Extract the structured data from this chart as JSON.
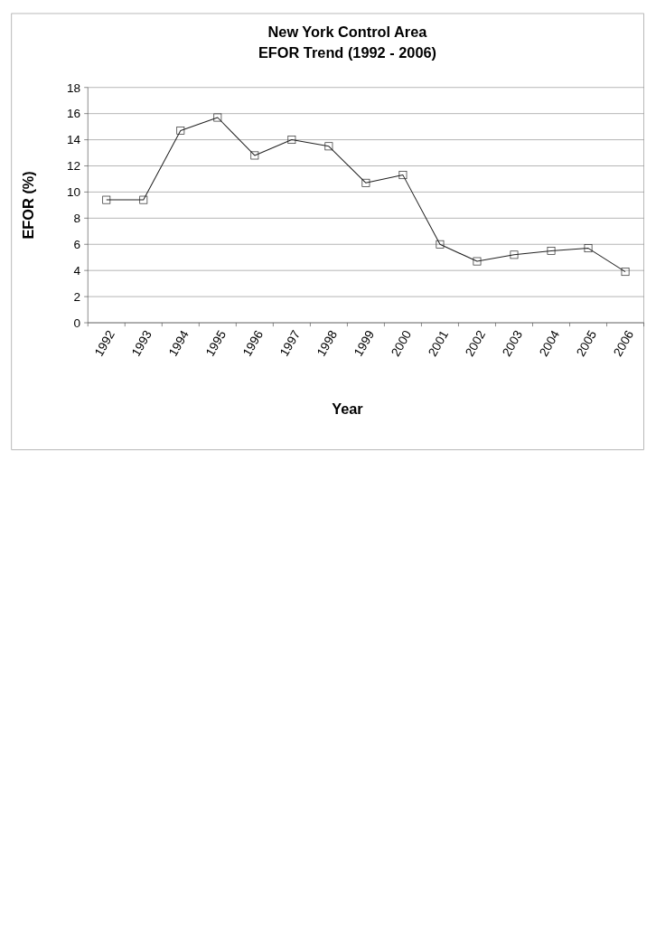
{
  "chart_data": {
    "type": "line",
    "title": "New York Control Area\nEFOR Trend (1992 - 2006)",
    "xlabel": "Year",
    "ylabel": "EFOR (%)",
    "categories": [
      "1992",
      "1993",
      "1994",
      "1995",
      "1996",
      "1997",
      "1998",
      "1999",
      "2000",
      "2001",
      "2002",
      "2003",
      "2004",
      "2005",
      "2006"
    ],
    "series": [
      {
        "color": "#222222",
        "values": [
          9.4,
          9.4,
          14.7,
          15.7,
          12.8,
          14.0,
          13.5,
          10.7,
          11.3,
          6.0,
          4.7,
          5.2,
          5.5,
          5.7,
          3.9
        ]
      }
    ],
    "ylim": [
      0,
      18
    ],
    "yticks": [
      0,
      2,
      4,
      6,
      8,
      10,
      12,
      14,
      16,
      18
    ],
    "grid": "y",
    "marker": "square",
    "line_style": "solid"
  }
}
